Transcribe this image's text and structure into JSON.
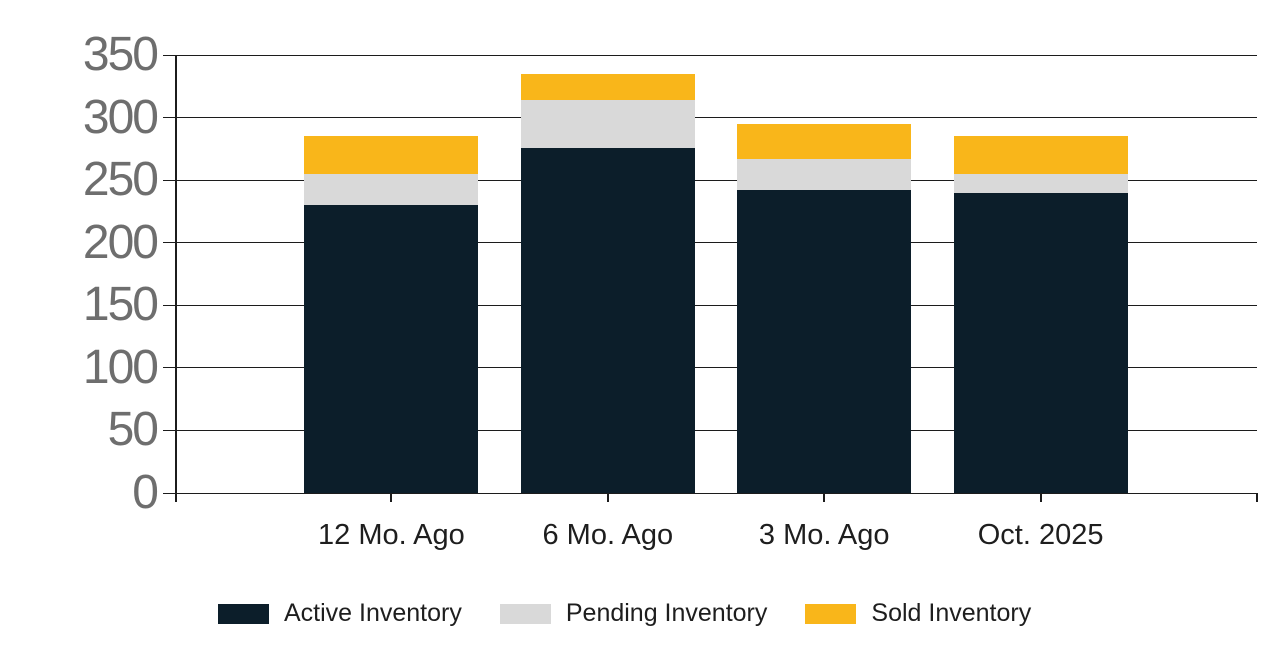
{
  "chart_data": {
    "type": "bar",
    "stacked": true,
    "title": "",
    "xlabel": "",
    "ylabel": "",
    "categories": [
      "12 Mo. Ago",
      "6 Mo. Ago",
      "3 Mo. Ago",
      "Oct. 2025"
    ],
    "series": [
      {
        "name": "Active Inventory",
        "color": "#0c1e2a",
        "values": [
          230,
          276,
          242,
          240
        ]
      },
      {
        "name": "Pending Inventory",
        "color": "#d9d9d9",
        "values": [
          25,
          38,
          25,
          15
        ]
      },
      {
        "name": "Sold Inventory",
        "color": "#f9b61a",
        "values": [
          30,
          21,
          28,
          30
        ]
      }
    ],
    "totals": [
      285,
      335,
      295,
      285
    ],
    "yticks": [
      0,
      50,
      100,
      150,
      200,
      250,
      300,
      350
    ],
    "ylim": [
      0,
      350
    ],
    "grid": true,
    "legend_position": "bottom",
    "axis_color": "#1c1c1c",
    "ytick_label_color": "#6e6e6e",
    "xtick_label_color": "#1e1e1e",
    "background": "#ffffff"
  }
}
